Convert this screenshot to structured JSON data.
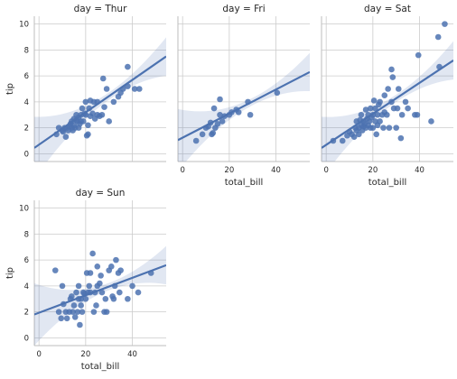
{
  "chart_data": [
    {
      "type": "scatter",
      "title": "day = Thur",
      "xlabel": "",
      "ylabel": "tip",
      "xlim": [
        -2,
        54.5
      ],
      "ylim": [
        -0.6,
        10.6
      ],
      "xticks": [],
      "yticks": [
        0,
        2,
        4,
        6,
        8,
        10
      ],
      "grid": true,
      "regression": {
        "x0": -2,
        "y0": 0.45,
        "x1": 54.5,
        "y1": 7.5
      },
      "points": [
        [
          7.5,
          1.5
        ],
        [
          8.5,
          2.0
        ],
        [
          10,
          1.8
        ],
        [
          10.3,
          1.7
        ],
        [
          11,
          2.0
        ],
        [
          11.5,
          1.3
        ],
        [
          12,
          2.0
        ],
        [
          12.5,
          1.8
        ],
        [
          13,
          2.1
        ],
        [
          13.5,
          2.3
        ],
        [
          14,
          2.0
        ],
        [
          14,
          2.5
        ],
        [
          14.5,
          1.8
        ],
        [
          15,
          2.2
        ],
        [
          15,
          2.7
        ],
        [
          15.5,
          2.0
        ],
        [
          16,
          2.6
        ],
        [
          16,
          3.0
        ],
        [
          16.5,
          2.5
        ],
        [
          17,
          2.0
        ],
        [
          17,
          2.8
        ],
        [
          17.5,
          2.3
        ],
        [
          18,
          3.0
        ],
        [
          18,
          2.5
        ],
        [
          18.5,
          3.5
        ],
        [
          19,
          2.5
        ],
        [
          19.5,
          3.1
        ],
        [
          20,
          3.0
        ],
        [
          20,
          4.0
        ],
        [
          20.5,
          1.4
        ],
        [
          21,
          1.5
        ],
        [
          21,
          2.2
        ],
        [
          21.5,
          3.5
        ],
        [
          22,
          4.1
        ],
        [
          22,
          2.9
        ],
        [
          23,
          3.1
        ],
        [
          23.5,
          4.0
        ],
        [
          24,
          2.7
        ],
        [
          25,
          3.0
        ],
        [
          25,
          4.0
        ],
        [
          26,
          2.9
        ],
        [
          27,
          3.0
        ],
        [
          27.5,
          5.8
        ],
        [
          28,
          3.6
        ],
        [
          29,
          5.0
        ],
        [
          30,
          2.5
        ],
        [
          32,
          4.0
        ],
        [
          34,
          4.4
        ],
        [
          35,
          4.7
        ],
        [
          36,
          5.0
        ],
        [
          38,
          5.2
        ],
        [
          38,
          6.7
        ],
        [
          41,
          5.0
        ],
        [
          43,
          5.0
        ]
      ]
    },
    {
      "type": "scatter",
      "title": "day = Fri",
      "xlabel": "total_bill",
      "ylabel": "",
      "xlim": [
        -2,
        54.5
      ],
      "ylim": [
        -0.6,
        10.6
      ],
      "xticks": [
        0,
        20,
        40
      ],
      "yticks": [],
      "grid": true,
      "regression": {
        "x0": -2,
        "y0": 1.05,
        "x1": 54.5,
        "y1": 6.3
      },
      "points": [
        [
          5.8,
          1.0
        ],
        [
          8.5,
          1.5
        ],
        [
          10,
          2.0
        ],
        [
          11,
          2.1
        ],
        [
          12,
          2.4
        ],
        [
          12.5,
          1.5
        ],
        [
          13,
          1.6
        ],
        [
          13.5,
          3.5
        ],
        [
          14,
          2.0
        ],
        [
          15,
          2.3
        ],
        [
          16,
          3.0
        ],
        [
          16,
          4.2
        ],
        [
          17,
          2.5
        ],
        [
          18,
          2.9
        ],
        [
          20,
          3.0
        ],
        [
          21,
          3.2
        ],
        [
          23,
          3.4
        ],
        [
          24,
          3.2
        ],
        [
          28,
          4.0
        ],
        [
          29,
          3.0
        ],
        [
          40.5,
          4.7
        ]
      ]
    },
    {
      "type": "scatter",
      "title": "day = Sat",
      "xlabel": "total_bill",
      "ylabel": "",
      "xlim": [
        -2,
        54.5
      ],
      "ylim": [
        -0.6,
        10.6
      ],
      "xticks": [
        0,
        20,
        40
      ],
      "yticks": [],
      "grid": true,
      "regression": {
        "x0": -2,
        "y0": 0.45,
        "x1": 54.5,
        "y1": 7.2
      },
      "points": [
        [
          3,
          1.0
        ],
        [
          7,
          1.0
        ],
        [
          9,
          1.4
        ],
        [
          10,
          1.7
        ],
        [
          11,
          1.5
        ],
        [
          12,
          1.3
        ],
        [
          12.5,
          2.0
        ],
        [
          13,
          1.8
        ],
        [
          13,
          2.5
        ],
        [
          14,
          1.5
        ],
        [
          14,
          2.0
        ],
        [
          14.5,
          2.6
        ],
        [
          15,
          2.2
        ],
        [
          15,
          3.0
        ],
        [
          15.5,
          1.8
        ],
        [
          16,
          2.5
        ],
        [
          16,
          2.1
        ],
        [
          16.5,
          2.3
        ],
        [
          17,
          3.4
        ],
        [
          17,
          2.0
        ],
        [
          17.5,
          2.7
        ],
        [
          18,
          2.2
        ],
        [
          18,
          3.0
        ],
        [
          18.5,
          2.5
        ],
        [
          19,
          2.0
        ],
        [
          19,
          3.5
        ],
        [
          19.5,
          2.8
        ],
        [
          20,
          3.0
        ],
        [
          20,
          2.0
        ],
        [
          20.5,
          4.1
        ],
        [
          21,
          2.5
        ],
        [
          21,
          3.5
        ],
        [
          21.5,
          1.5
        ],
        [
          22,
          3.0
        ],
        [
          22,
          2.2
        ],
        [
          22.5,
          3.8
        ],
        [
          23,
          4.0
        ],
        [
          23,
          2.5
        ],
        [
          24,
          3.0
        ],
        [
          24.5,
          2.0
        ],
        [
          25,
          3.2
        ],
        [
          25,
          4.5
        ],
        [
          26,
          3.0
        ],
        [
          26.5,
          5.0
        ],
        [
          27,
          2.0
        ],
        [
          28,
          4.0
        ],
        [
          28,
          6.5
        ],
        [
          28.5,
          5.9
        ],
        [
          29,
          3.5
        ],
        [
          30,
          2.0
        ],
        [
          30.5,
          3.5
        ],
        [
          31,
          5.0
        ],
        [
          32,
          1.2
        ],
        [
          32.5,
          3.0
        ],
        [
          34,
          4.0
        ],
        [
          35,
          3.5
        ],
        [
          38,
          3.0
        ],
        [
          39,
          3.0
        ],
        [
          39.5,
          7.6
        ],
        [
          45,
          2.5
        ],
        [
          48,
          9.0
        ],
        [
          48.5,
          6.7
        ],
        [
          50.8,
          10.0
        ]
      ]
    },
    {
      "type": "scatter",
      "title": "day = Sun",
      "xlabel": "total_bill",
      "ylabel": "tip",
      "xlim": [
        -2,
        54.5
      ],
      "ylim": [
        -0.6,
        10.6
      ],
      "xticks": [
        0,
        20,
        40
      ],
      "yticks": [
        0,
        2,
        4,
        6,
        8,
        10
      ],
      "grid": true,
      "regression": {
        "x0": -2,
        "y0": 1.8,
        "x1": 54.5,
        "y1": 5.6
      },
      "points": [
        [
          7,
          5.2
        ],
        [
          8.5,
          2.0
        ],
        [
          9.5,
          1.5
        ],
        [
          10,
          4.0
        ],
        [
          10.5,
          2.6
        ],
        [
          11.5,
          2.0
        ],
        [
          12,
          1.5
        ],
        [
          13,
          2.0
        ],
        [
          13.5,
          3.0
        ],
        [
          14,
          3.2
        ],
        [
          14.5,
          2.0
        ],
        [
          15,
          2.5
        ],
        [
          15.5,
          1.6
        ],
        [
          16,
          3.5
        ],
        [
          16.5,
          2.0
        ],
        [
          17,
          3.0
        ],
        [
          17,
          4.0
        ],
        [
          17.5,
          1.0
        ],
        [
          18,
          3.0
        ],
        [
          18,
          2.5
        ],
        [
          18.5,
          2.0
        ],
        [
          19,
          3.5
        ],
        [
          19.5,
          3.4
        ],
        [
          20,
          3.0
        ],
        [
          20.5,
          5.0
        ],
        [
          21,
          3.5
        ],
        [
          21.5,
          4.0
        ],
        [
          22,
          5.0
        ],
        [
          22,
          3.5
        ],
        [
          23,
          6.5
        ],
        [
          23.5,
          2.0
        ],
        [
          24,
          3.5
        ],
        [
          24.5,
          2.5
        ],
        [
          25,
          4.0
        ],
        [
          25,
          5.5
        ],
        [
          26,
          4.2
        ],
        [
          26.5,
          4.8
        ],
        [
          27,
          3.5
        ],
        [
          28,
          2.0
        ],
        [
          28.5,
          3.0
        ],
        [
          29,
          2.0
        ],
        [
          30,
          5.2
        ],
        [
          31,
          5.5
        ],
        [
          31.5,
          3.2
        ],
        [
          32,
          3.0
        ],
        [
          32.5,
          4.0
        ],
        [
          33,
          6.0
        ],
        [
          34,
          5.0
        ],
        [
          34.5,
          3.5
        ],
        [
          35,
          5.2
        ],
        [
          38,
          3.0
        ],
        [
          40,
          4.0
        ],
        [
          42.5,
          3.5
        ],
        [
          48,
          5.0
        ]
      ]
    }
  ]
}
